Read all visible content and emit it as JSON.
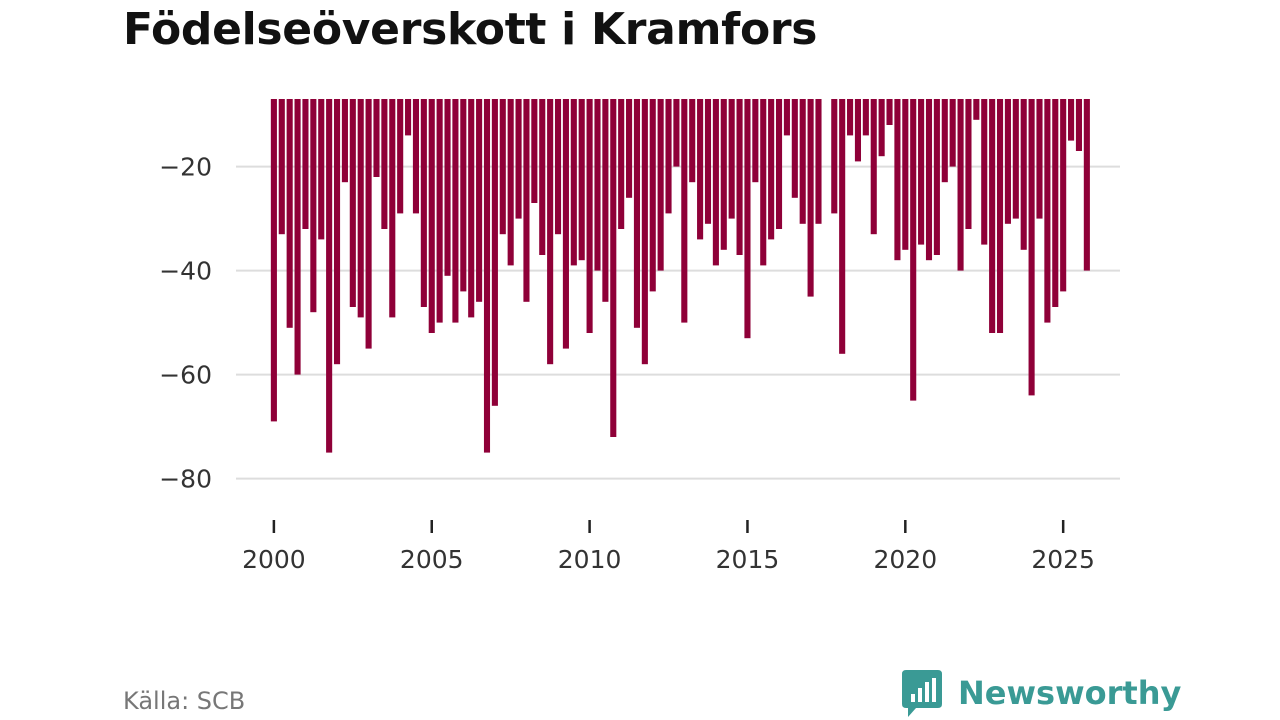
{
  "header": {
    "title": "Födelseöverskott i Kramfors"
  },
  "footer": {
    "source": "Källa: SCB",
    "brand": "Newsworthy"
  },
  "colors": {
    "bar": "#8f0038",
    "grid": "#dddddd",
    "axis_text": "#333333",
    "brand": "#3a9a95"
  },
  "chart_data": {
    "type": "bar",
    "title": "Födelseöverskott i Kramfors",
    "xlabel": "",
    "ylabel": "",
    "ylim": [
      -87,
      -7
    ],
    "xlim": [
      1998.8,
      2026.8
    ],
    "yticks": [
      -20,
      -40,
      -60,
      -80
    ],
    "ytick_labels": [
      "−20",
      "−40",
      "−60",
      "−80"
    ],
    "xticks": [
      2000,
      2005,
      2010,
      2015,
      2020,
      2025
    ],
    "xtick_labels": [
      "2000",
      "2005",
      "2010",
      "2015",
      "2020",
      "2025"
    ],
    "bar_baseline": -7,
    "start": "2000-01",
    "period": "quarter",
    "values": [
      -69,
      -33,
      -51,
      -60,
      -32,
      -48,
      -34,
      -75,
      -58,
      -23,
      -47,
      -49,
      -55,
      -22,
      -32,
      -49,
      -29,
      -14,
      -29,
      -47,
      -52,
      -50,
      -41,
      -50,
      -44,
      -49,
      -46,
      -75,
      -66,
      -33,
      -39,
      -30,
      -46,
      -27,
      -37,
      -58,
      -33,
      -55,
      -39,
      -38,
      -52,
      -40,
      -46,
      -72,
      -32,
      -26,
      -51,
      -58,
      -44,
      -40,
      -29,
      -20,
      -50,
      -23,
      -34,
      -31,
      -39,
      -36,
      -30,
      -37,
      -53,
      -23,
      -39,
      -34,
      -32,
      -14,
      -26,
      -31,
      -45,
      -31,
      null,
      -29,
      -56,
      -14,
      -19,
      -14,
      -33,
      -18,
      -12,
      -38,
      -36,
      -65,
      -35,
      -38,
      -37,
      -23,
      -20,
      -40,
      -32,
      -11,
      -35,
      -52,
      -52,
      -31,
      -30,
      -36,
      -64,
      -30,
      -50,
      -47,
      -44,
      -15,
      -17,
      -40
    ]
  }
}
